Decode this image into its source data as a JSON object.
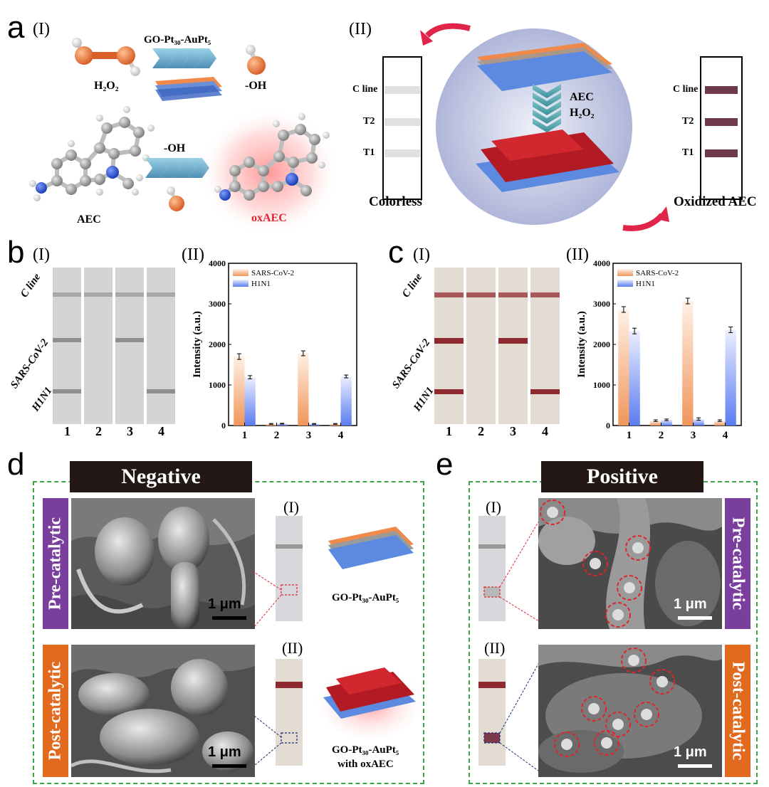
{
  "panels": {
    "a": "a",
    "b": "b",
    "c": "c",
    "d": "d",
    "e": "e",
    "i": "(I)",
    "ii": "(II)"
  },
  "panel_a": {
    "catalyst": "GO-Pt₃₀-AuPt₅",
    "h2o2": "H₂O₂",
    "oh_product": "-OH",
    "oh_reagent": "-OH",
    "aec": "AEC",
    "oxaec": "oxAEC",
    "strip_labels": [
      "C line",
      "T2",
      "T1"
    ],
    "colorless": "Colorless",
    "oxidized": "Oxidized AEC",
    "center_reagent_1": "AEC",
    "center_reagent_2": "H₂O₂"
  },
  "panel_b": {
    "strip_row_labels": [
      "C line",
      "SARS-CoV-2",
      "H1N1"
    ],
    "strip_numbers": [
      "1",
      "2",
      "3",
      "4"
    ]
  },
  "panel_c": {
    "strip_row_labels": [
      "C line",
      "SARS-CoV-2",
      "H1N1"
    ],
    "strip_numbers": [
      "1",
      "2",
      "3",
      "4"
    ]
  },
  "chart_data": [
    {
      "type": "bar",
      "categories": [
        "1",
        "2",
        "3",
        "4"
      ],
      "series": [
        {
          "name": "SARS-CoV-2",
          "values": [
            1700,
            40,
            1780,
            40
          ],
          "errors": [
            70,
            10,
            60,
            10
          ]
        },
        {
          "name": "H1N1",
          "values": [
            1190,
            45,
            40,
            1210
          ],
          "errors": [
            40,
            10,
            10,
            35
          ]
        }
      ],
      "ylabel": "Intensity (a.u.)",
      "ylim": [
        0,
        4000
      ],
      "yticks": [
        "0",
        "1000",
        "2000",
        "3000",
        "4000"
      ],
      "legend": "top-left"
    },
    {
      "type": "bar",
      "categories": [
        "1",
        "2",
        "3",
        "4"
      ],
      "series": [
        {
          "name": "SARS-CoV-2",
          "values": [
            2860,
            120,
            3070,
            120
          ],
          "errors": [
            70,
            20,
            70,
            20
          ]
        },
        {
          "name": "H1N1",
          "values": [
            2330,
            140,
            160,
            2360
          ],
          "errors": [
            70,
            20,
            30,
            70
          ]
        }
      ],
      "ylabel": "Intensity (a.u.)",
      "ylim": [
        0,
        4000
      ],
      "yticks": [
        "0",
        "1000",
        "2000",
        "3000",
        "4000"
      ],
      "legend": "top-left"
    }
  ],
  "panel_d": {
    "banner": "Negative",
    "pre": "Pre-catalytic",
    "post": "Post-catalytic",
    "scale": "1 μm",
    "catalyst_label": "GO-Pt₃₀-AuPt₅",
    "catalyst_ox_line1": "GO-Pt₃₀-AuPt₅",
    "catalyst_ox_line2": "with oxAEC"
  },
  "panel_e": {
    "banner": "Positive",
    "pre": "Pre-catalytic",
    "post": "Post-catalytic",
    "scale": "1 μm"
  },
  "colors": {
    "sars": "#f0955a",
    "h1n1": "#5a7cf0",
    "banner": "#231815",
    "purple": "#7a3e9d",
    "orange": "#e26a1f",
    "strip_band_red": "#8e2a2e",
    "oxaec_band": "#6e3a4a"
  }
}
